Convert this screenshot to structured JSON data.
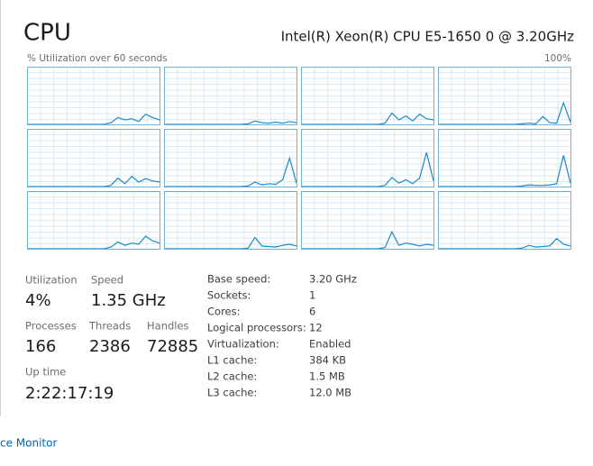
{
  "header": {
    "title": "CPU",
    "processor": "Intel(R) Xeon(R) CPU E5-1650 0 @ 3.20GHz"
  },
  "graph": {
    "caption": "% Utilization over 60 seconds",
    "max_label": "100%",
    "ylim": [
      0,
      100
    ],
    "cores": [
      {
        "values": [
          0,
          0,
          0,
          0,
          0,
          0,
          0,
          0,
          0,
          0,
          0,
          0,
          3,
          12,
          8,
          10,
          5,
          18,
          12,
          8
        ]
      },
      {
        "values": [
          0,
          0,
          0,
          0,
          0,
          0,
          0,
          0,
          0,
          0,
          0,
          0,
          1,
          6,
          3,
          2,
          4,
          2,
          5,
          3
        ]
      },
      {
        "values": [
          0,
          0,
          0,
          0,
          0,
          0,
          0,
          0,
          0,
          0,
          0,
          0,
          2,
          20,
          8,
          15,
          6,
          18,
          10,
          8
        ]
      },
      {
        "values": [
          0,
          0,
          0,
          0,
          0,
          0,
          0,
          0,
          0,
          0,
          0,
          0,
          1,
          2,
          1,
          14,
          3,
          2,
          38,
          4
        ]
      },
      {
        "values": [
          0,
          0,
          0,
          0,
          0,
          0,
          0,
          0,
          0,
          0,
          0,
          0,
          2,
          15,
          5,
          18,
          8,
          14,
          10,
          8
        ]
      },
      {
        "values": [
          0,
          0,
          0,
          0,
          0,
          0,
          0,
          0,
          0,
          0,
          0,
          0,
          1,
          8,
          3,
          5,
          4,
          12,
          50,
          6
        ]
      },
      {
        "values": [
          0,
          0,
          0,
          0,
          0,
          0,
          0,
          0,
          0,
          0,
          0,
          0,
          2,
          16,
          6,
          12,
          5,
          15,
          60,
          10
        ]
      },
      {
        "values": [
          0,
          0,
          0,
          0,
          0,
          0,
          0,
          0,
          0,
          0,
          0,
          0,
          1,
          3,
          2,
          2,
          3,
          5,
          55,
          6
        ]
      },
      {
        "values": [
          0,
          0,
          0,
          0,
          0,
          0,
          0,
          0,
          0,
          0,
          0,
          0,
          3,
          12,
          6,
          10,
          8,
          22,
          14,
          10
        ]
      },
      {
        "values": [
          0,
          0,
          0,
          0,
          0,
          0,
          0,
          0,
          0,
          0,
          0,
          0,
          1,
          20,
          5,
          4,
          3,
          6,
          8,
          5
        ]
      },
      {
        "values": [
          0,
          0,
          0,
          0,
          0,
          0,
          0,
          0,
          0,
          0,
          0,
          0,
          2,
          30,
          6,
          10,
          8,
          5,
          8,
          6
        ]
      },
      {
        "values": [
          0,
          0,
          0,
          0,
          0,
          0,
          0,
          0,
          0,
          0,
          0,
          0,
          1,
          6,
          3,
          4,
          5,
          18,
          8,
          5
        ]
      }
    ]
  },
  "stats": {
    "utilization": {
      "label": "Utilization",
      "value": "4%"
    },
    "speed": {
      "label": "Speed",
      "value": "1.35 GHz"
    },
    "processes": {
      "label": "Processes",
      "value": "166"
    },
    "threads": {
      "label": "Threads",
      "value": "2386"
    },
    "handles": {
      "label": "Handles",
      "value": "72885"
    },
    "uptime": {
      "label": "Up time",
      "value": "2:22:17:19"
    }
  },
  "details": [
    [
      "Base speed:",
      "3.20 GHz"
    ],
    [
      "Sockets:",
      "1"
    ],
    [
      "Cores:",
      "6"
    ],
    [
      "Logical processors:",
      "12"
    ],
    [
      "Virtualization:",
      "Enabled"
    ],
    [
      "L1 cache:",
      "384 KB"
    ],
    [
      "L2 cache:",
      "1.5 MB"
    ],
    [
      "L3 cache:",
      "12.0 MB"
    ]
  ],
  "footer": {
    "link": "ce Monitor"
  }
}
